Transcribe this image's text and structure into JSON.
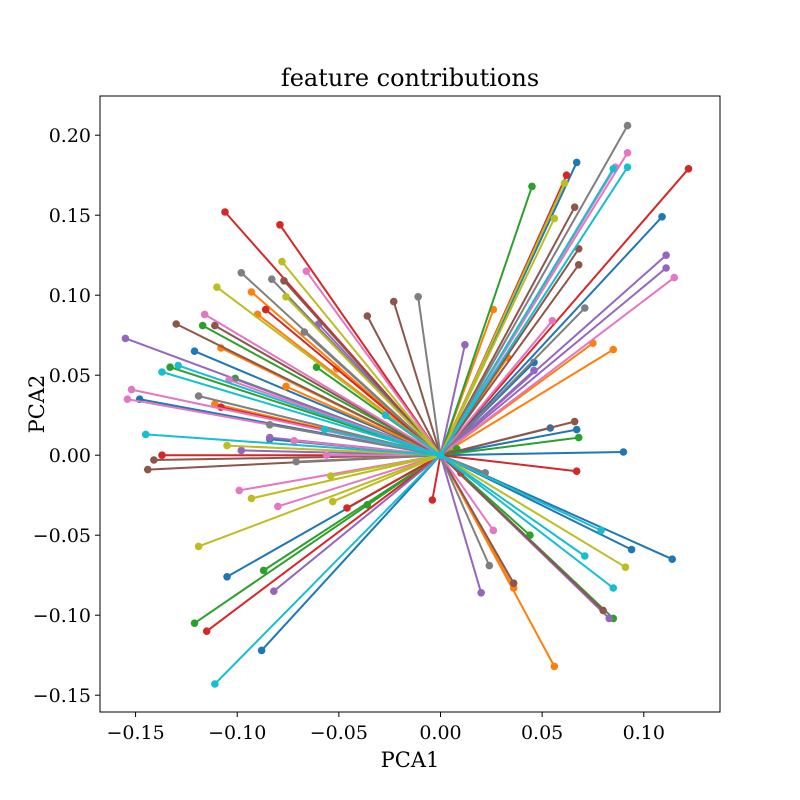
{
  "chart_data": {
    "type": "line",
    "title": "feature contributions",
    "xlabel": "PCA1",
    "ylabel": "PCA2",
    "xlim": [
      -0.1675,
      0.1375
    ],
    "ylim": [
      -0.1605,
      0.2245
    ],
    "xticks": [
      -0.15,
      -0.1,
      -0.05,
      0.0,
      0.05,
      0.1
    ],
    "xtick_labels": [
      "−0.15",
      "−0.10",
      "−0.05",
      "0.00",
      "0.05",
      "0.10"
    ],
    "yticks": [
      -0.15,
      -0.1,
      -0.05,
      0.0,
      0.05,
      0.1,
      0.15,
      0.2
    ],
    "ytick_labels": [
      "−0.15",
      "−0.10",
      "−0.05",
      "0.00",
      "0.05",
      "0.10",
      "0.15",
      "0.20"
    ],
    "grid": false,
    "legend": false,
    "origin": [
      0,
      0
    ],
    "palette": [
      "#1f77b4",
      "#ff7f0e",
      "#2ca02c",
      "#d62728",
      "#9467bd",
      "#8c564b",
      "#e377c2",
      "#7f7f7f",
      "#bcbd22",
      "#17becf"
    ],
    "vectors": [
      {
        "x": 0.09,
        "y": 0.002,
        "color": "#1f77b4"
      },
      {
        "x": 0.067,
        "y": 0.016,
        "color": "#1f77b4"
      },
      {
        "x": 0.054,
        "y": 0.017,
        "color": "#1f77b4"
      },
      {
        "x": 0.046,
        "y": 0.058,
        "color": "#1f77b4"
      },
      {
        "x": 0.109,
        "y": 0.149,
        "color": "#1f77b4"
      },
      {
        "x": 0.067,
        "y": 0.183,
        "color": "#1f77b4"
      },
      {
        "x": 0.114,
        "y": -0.065,
        "color": "#1f77b4"
      },
      {
        "x": 0.094,
        "y": -0.059,
        "color": "#1f77b4"
      },
      {
        "x": -0.105,
        "y": -0.076,
        "color": "#1f77b4"
      },
      {
        "x": -0.088,
        "y": -0.122,
        "color": "#1f77b4"
      },
      {
        "x": -0.148,
        "y": 0.035,
        "color": "#1f77b4"
      },
      {
        "x": -0.121,
        "y": 0.065,
        "color": "#1f77b4"
      },
      {
        "x": -0.084,
        "y": 0.01,
        "color": "#1f77b4"
      },
      {
        "x": 0.085,
        "y": 0.066,
        "color": "#ff7f0e"
      },
      {
        "x": 0.075,
        "y": 0.07,
        "color": "#ff7f0e"
      },
      {
        "x": 0.033,
        "y": 0.061,
        "color": "#ff7f0e"
      },
      {
        "x": 0.026,
        "y": 0.091,
        "color": "#ff7f0e"
      },
      {
        "x": 0.056,
        "y": -0.132,
        "color": "#ff7f0e"
      },
      {
        "x": 0.036,
        "y": -0.083,
        "color": "#ff7f0e"
      },
      {
        "x": -0.108,
        "y": 0.067,
        "color": "#ff7f0e"
      },
      {
        "x": -0.093,
        "y": 0.102,
        "color": "#ff7f0e"
      },
      {
        "x": -0.09,
        "y": 0.088,
        "color": "#ff7f0e"
      },
      {
        "x": -0.076,
        "y": 0.043,
        "color": "#ff7f0e"
      },
      {
        "x": -0.051,
        "y": 0.054,
        "color": "#ff7f0e"
      },
      {
        "x": -0.111,
        "y": 0.032,
        "color": "#ff7f0e"
      },
      {
        "x": 0.068,
        "y": 0.011,
        "color": "#2ca02c"
      },
      {
        "x": 0.045,
        "y": 0.168,
        "color": "#2ca02c"
      },
      {
        "x": 0.085,
        "y": -0.102,
        "color": "#2ca02c"
      },
      {
        "x": 0.044,
        "y": -0.05,
        "color": "#2ca02c"
      },
      {
        "x": 0.008,
        "y": 0.004,
        "color": "#2ca02c"
      },
      {
        "x": -0.117,
        "y": 0.081,
        "color": "#2ca02c"
      },
      {
        "x": -0.133,
        "y": 0.055,
        "color": "#2ca02c"
      },
      {
        "x": -0.101,
        "y": 0.048,
        "color": "#2ca02c"
      },
      {
        "x": -0.061,
        "y": 0.055,
        "color": "#2ca02c"
      },
      {
        "x": -0.121,
        "y": -0.105,
        "color": "#2ca02c"
      },
      {
        "x": -0.087,
        "y": -0.072,
        "color": "#2ca02c"
      },
      {
        "x": -0.036,
        "y": -0.031,
        "color": "#2ca02c"
      },
      {
        "x": 0.122,
        "y": 0.179,
        "color": "#d62728"
      },
      {
        "x": 0.062,
        "y": 0.175,
        "color": "#d62728"
      },
      {
        "x": 0.067,
        "y": -0.01,
        "color": "#d62728"
      },
      {
        "x": 0.01,
        "y": -0.011,
        "color": "#d62728"
      },
      {
        "x": -0.004,
        "y": -0.028,
        "color": "#d62728"
      },
      {
        "x": -0.106,
        "y": 0.152,
        "color": "#d62728"
      },
      {
        "x": -0.079,
        "y": 0.144,
        "color": "#d62728"
      },
      {
        "x": -0.086,
        "y": 0.091,
        "color": "#d62728"
      },
      {
        "x": -0.137,
        "y": 0.0,
        "color": "#d62728"
      },
      {
        "x": -0.115,
        "y": -0.11,
        "color": "#d62728"
      },
      {
        "x": -0.046,
        "y": -0.033,
        "color": "#d62728"
      },
      {
        "x": -0.108,
        "y": 0.03,
        "color": "#d62728"
      },
      {
        "x": 0.111,
        "y": 0.125,
        "color": "#9467bd"
      },
      {
        "x": 0.111,
        "y": 0.117,
        "color": "#9467bd"
      },
      {
        "x": 0.046,
        "y": 0.053,
        "color": "#9467bd"
      },
      {
        "x": 0.012,
        "y": 0.069,
        "color": "#9467bd"
      },
      {
        "x": 0.02,
        "y": -0.086,
        "color": "#9467bd"
      },
      {
        "x": 0.083,
        "y": -0.102,
        "color": "#9467bd"
      },
      {
        "x": -0.155,
        "y": 0.073,
        "color": "#9467bd"
      },
      {
        "x": -0.098,
        "y": 0.003,
        "color": "#9467bd"
      },
      {
        "x": -0.082,
        "y": -0.085,
        "color": "#9467bd"
      },
      {
        "x": -0.084,
        "y": 0.011,
        "color": "#9467bd"
      },
      {
        "x": -0.06,
        "y": 0.082,
        "color": "#9467bd"
      },
      {
        "x": 0.068,
        "y": 0.129,
        "color": "#8c564b"
      },
      {
        "x": 0.068,
        "y": 0.119,
        "color": "#8c564b"
      },
      {
        "x": 0.066,
        "y": 0.155,
        "color": "#8c564b"
      },
      {
        "x": 0.066,
        "y": 0.021,
        "color": "#8c564b"
      },
      {
        "x": 0.036,
        "y": -0.08,
        "color": "#8c564b"
      },
      {
        "x": 0.08,
        "y": -0.097,
        "color": "#8c564b"
      },
      {
        "x": -0.13,
        "y": 0.082,
        "color": "#8c564b"
      },
      {
        "x": -0.111,
        "y": 0.081,
        "color": "#8c564b"
      },
      {
        "x": -0.077,
        "y": 0.109,
        "color": "#8c564b"
      },
      {
        "x": -0.036,
        "y": 0.087,
        "color": "#8c564b"
      },
      {
        "x": -0.023,
        "y": 0.096,
        "color": "#8c564b"
      },
      {
        "x": -0.141,
        "y": -0.003,
        "color": "#8c564b"
      },
      {
        "x": -0.144,
        "y": -0.009,
        "color": "#8c564b"
      },
      {
        "x": 0.086,
        "y": 0.18,
        "color": "#e377c2"
      },
      {
        "x": 0.092,
        "y": 0.189,
        "color": "#e377c2"
      },
      {
        "x": 0.115,
        "y": 0.111,
        "color": "#e377c2"
      },
      {
        "x": 0.055,
        "y": 0.084,
        "color": "#e377c2"
      },
      {
        "x": 0.026,
        "y": -0.047,
        "color": "#e377c2"
      },
      {
        "x": -0.116,
        "y": 0.088,
        "color": "#e377c2"
      },
      {
        "x": -0.066,
        "y": 0.115,
        "color": "#e377c2"
      },
      {
        "x": -0.152,
        "y": 0.041,
        "color": "#e377c2"
      },
      {
        "x": -0.154,
        "y": 0.035,
        "color": "#e377c2"
      },
      {
        "x": -0.104,
        "y": 0.047,
        "color": "#e377c2"
      },
      {
        "x": -0.099,
        "y": -0.022,
        "color": "#e377c2"
      },
      {
        "x": -0.08,
        "y": -0.032,
        "color": "#e377c2"
      },
      {
        "x": -0.072,
        "y": 0.009,
        "color": "#e377c2"
      },
      {
        "x": -0.056,
        "y": 0.0,
        "color": "#e377c2"
      },
      {
        "x": 0.092,
        "y": 0.206,
        "color": "#7f7f7f"
      },
      {
        "x": 0.071,
        "y": 0.092,
        "color": "#7f7f7f"
      },
      {
        "x": 0.022,
        "y": -0.011,
        "color": "#7f7f7f"
      },
      {
        "x": 0.024,
        "y": -0.069,
        "color": "#7f7f7f"
      },
      {
        "x": -0.011,
        "y": 0.099,
        "color": "#7f7f7f"
      },
      {
        "x": -0.098,
        "y": 0.114,
        "color": "#7f7f7f"
      },
      {
        "x": -0.083,
        "y": 0.11,
        "color": "#7f7f7f"
      },
      {
        "x": -0.084,
        "y": 0.019,
        "color": "#7f7f7f"
      },
      {
        "x": -0.119,
        "y": 0.037,
        "color": "#7f7f7f"
      },
      {
        "x": -0.071,
        "y": -0.004,
        "color": "#7f7f7f"
      },
      {
        "x": -0.067,
        "y": 0.077,
        "color": "#7f7f7f"
      },
      {
        "x": 0.061,
        "y": 0.17,
        "color": "#bcbd22"
      },
      {
        "x": 0.056,
        "y": 0.148,
        "color": "#bcbd22"
      },
      {
        "x": 0.091,
        "y": -0.07,
        "color": "#bcbd22"
      },
      {
        "x": -0.11,
        "y": 0.105,
        "color": "#bcbd22"
      },
      {
        "x": -0.078,
        "y": 0.121,
        "color": "#bcbd22"
      },
      {
        "x": -0.076,
        "y": 0.099,
        "color": "#bcbd22"
      },
      {
        "x": -0.105,
        "y": 0.006,
        "color": "#bcbd22"
      },
      {
        "x": -0.119,
        "y": -0.057,
        "color": "#bcbd22"
      },
      {
        "x": -0.093,
        "y": -0.027,
        "color": "#bcbd22"
      },
      {
        "x": -0.053,
        "y": -0.029,
        "color": "#bcbd22"
      },
      {
        "x": -0.054,
        "y": -0.013,
        "color": "#bcbd22"
      },
      {
        "x": 0.092,
        "y": 0.18,
        "color": "#17becf"
      },
      {
        "x": 0.085,
        "y": 0.179,
        "color": "#17becf"
      },
      {
        "x": 0.079,
        "y": -0.047,
        "color": "#17becf"
      },
      {
        "x": 0.071,
        "y": -0.063,
        "color": "#17becf"
      },
      {
        "x": 0.085,
        "y": -0.083,
        "color": "#17becf"
      },
      {
        "x": -0.145,
        "y": 0.013,
        "color": "#17becf"
      },
      {
        "x": -0.137,
        "y": 0.052,
        "color": "#17becf"
      },
      {
        "x": -0.129,
        "y": 0.056,
        "color": "#17becf"
      },
      {
        "x": -0.111,
        "y": -0.143,
        "color": "#17becf"
      },
      {
        "x": -0.057,
        "y": 0.016,
        "color": "#17becf"
      },
      {
        "x": -0.027,
        "y": 0.025,
        "color": "#17becf"
      }
    ]
  }
}
